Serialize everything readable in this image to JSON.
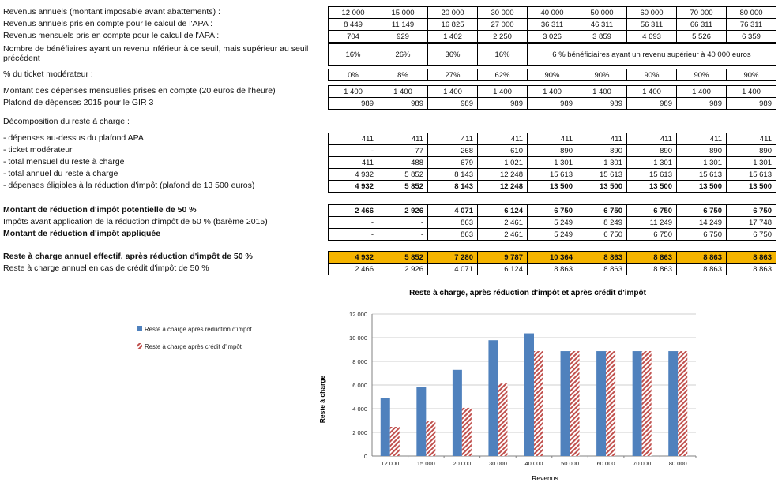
{
  "columns": [
    "c1",
    "c2",
    "c3",
    "c4",
    "c5",
    "c6",
    "c7",
    "c8",
    "c9"
  ],
  "sections": [
    {
      "id": "s1",
      "rows": [
        {
          "label": "Revenus annuels  (montant imposable avant abattements) :",
          "align": "c",
          "values": [
            "12 000",
            "15 000",
            "20 000",
            "30 000",
            "40 000",
            "50 000",
            "60 000",
            "70 000",
            "80 000"
          ]
        },
        {
          "label": "Revenus annuels pris en compte pour le calcul de l'APA :",
          "align": "c",
          "values": [
            "8 449",
            "11 149",
            "16 825",
            "27 000",
            "36 311",
            "46 311",
            "56 311",
            "66 311",
            "76 311"
          ]
        },
        {
          "label": "Revenus mensuels pris en compte pour le calcul de l'APA :",
          "align": "c",
          "values": [
            "704",
            "929",
            "1 402",
            "2 250",
            "3 026",
            "3 859",
            "4 693",
            "5 526",
            "6 359"
          ]
        }
      ]
    },
    {
      "id": "s2",
      "rows": [
        {
          "label": "Nombre de bénéfiaires ayant un revenu inférieur à ce seuil, mais supérieur au seuil précédent",
          "align": "c",
          "tall": true,
          "values": [
            "16%",
            "26%",
            "36%",
            "16%"
          ],
          "merged": "6 % bénéficiaires ayant un revenu supérieur à 40 000 euros"
        }
      ]
    },
    {
      "id": "s3",
      "rows": [
        {
          "label": "% du ticket modérateur :",
          "align": "c",
          "values": [
            "0%",
            "8%",
            "27%",
            "62%",
            "90%",
            "90%",
            "90%",
            "90%",
            "90%"
          ]
        }
      ]
    },
    {
      "id": "s4",
      "rows": [
        {
          "label": "Montant des dépenses mensuelles prises en compte (20 euros de l'heure)",
          "align": "c",
          "values": [
            "1 400",
            "1 400",
            "1 400",
            "1 400",
            "1 400",
            "1 400",
            "1 400",
            "1 400",
            "1 400"
          ]
        },
        {
          "label": "Plafond de dépenses 2015 pour le GIR 3",
          "align": "r",
          "values": [
            "989",
            "989",
            "989",
            "989",
            "989",
            "989",
            "989",
            "989",
            "989"
          ]
        }
      ]
    },
    {
      "id": "s5",
      "heading": "Décomposition du reste à charge :"
    },
    {
      "id": "s6",
      "rows": [
        {
          "label": "- dépenses au-dessus du plafond APA",
          "align": "r",
          "values": [
            "411",
            "411",
            "411",
            "411",
            "411",
            "411",
            "411",
            "411",
            "411"
          ]
        },
        {
          "label": "- ticket modérateur",
          "align": "r",
          "values": [
            "-",
            "77",
            "268",
            "610",
            "890",
            "890",
            "890",
            "890",
            "890"
          ]
        },
        {
          "label": "- total mensuel du reste à charge",
          "align": "r",
          "values": [
            "411",
            "488",
            "679",
            "1 021",
            "1 301",
            "1 301",
            "1 301",
            "1 301",
            "1 301"
          ]
        },
        {
          "label": "- total annuel du reste à charge",
          "align": "r",
          "values": [
            "4 932",
            "5 852",
            "8 143",
            "12 248",
            "15 613",
            "15 613",
            "15 613",
            "15 613",
            "15 613"
          ]
        },
        {
          "label": "- dépenses éligibles à la réduction d'impôt (plafond de 13 500 euros)",
          "align": "r",
          "bold": true,
          "values": [
            "4 932",
            "5 852",
            "8 143",
            "12 248",
            "13 500",
            "13 500",
            "13 500",
            "13 500",
            "13 500"
          ]
        }
      ]
    },
    {
      "id": "s7",
      "rows": [
        {
          "label": "Montant de réduction d'impôt potentielle de 50 %",
          "labelBold": true,
          "align": "r",
          "bold": true,
          "values": [
            "2 466",
            "2 926",
            "4 071",
            "6 124",
            "6 750",
            "6 750",
            "6 750",
            "6 750",
            "6 750"
          ]
        },
        {
          "label": "Impôts avant application de la réduction d'impôt de 50 % (barème 2015)",
          "align": "r",
          "values": [
            "-",
            "-",
            "863",
            "2 461",
            "5 249",
            "8 249",
            "11 249",
            "14 249",
            "17 748"
          ]
        },
        {
          "label": "Montant de réduction d'impôt appliquée",
          "labelBold": true,
          "align": "r",
          "values": [
            "-",
            "-",
            "863",
            "2 461",
            "5 249",
            "6 750",
            "6 750",
            "6 750",
            "6 750"
          ]
        }
      ]
    },
    {
      "id": "s8",
      "rows": [
        {
          "label": "Reste à charge annuel effectif, après réduction d'impôt de 50 %",
          "labelBold": true,
          "align": "r",
          "highlight": true,
          "values": [
            "4 932",
            "5 852",
            "7 280",
            "9 787",
            "10 364",
            "8 863",
            "8 863",
            "8 863",
            "8 863"
          ]
        },
        {
          "label": "Reste à charge annuel en cas de crédit d'impôt de 50 %",
          "align": "r",
          "values": [
            "2 466",
            "2 926",
            "4 071",
            "6 124",
            "8 863",
            "8 863",
            "8 863",
            "8 863",
            "8 863"
          ]
        }
      ]
    }
  ],
  "chart_data": {
    "type": "bar",
    "title": "Reste à charge, après réduction d'impôt et après crédit d'impôt",
    "xlabel": "Revenus",
    "ylabel": "Reste à charge",
    "ylim": [
      0,
      12000
    ],
    "yticks": [
      "0",
      "2 000",
      "4 000",
      "6 000",
      "8 000",
      "10 000",
      "12 000"
    ],
    "categories": [
      "12 000",
      "15 000",
      "20 000",
      "30 000",
      "40 000",
      "50 000",
      "60 000",
      "70 000",
      "80 000"
    ],
    "series": [
      {
        "name": "Reste à charge après réduction d'impôt",
        "color": "#4f81bd",
        "pattern": "solid",
        "values": [
          4932,
          5852,
          7280,
          9787,
          10364,
          8863,
          8863,
          8863,
          8863
        ]
      },
      {
        "name": "Reste à charge après crédit d'impôt",
        "color": "#c0504d",
        "pattern": "hatched",
        "values": [
          2466,
          2926,
          4071,
          6124,
          8863,
          8863,
          8863,
          8863,
          8863
        ]
      }
    ],
    "legend": "left"
  }
}
